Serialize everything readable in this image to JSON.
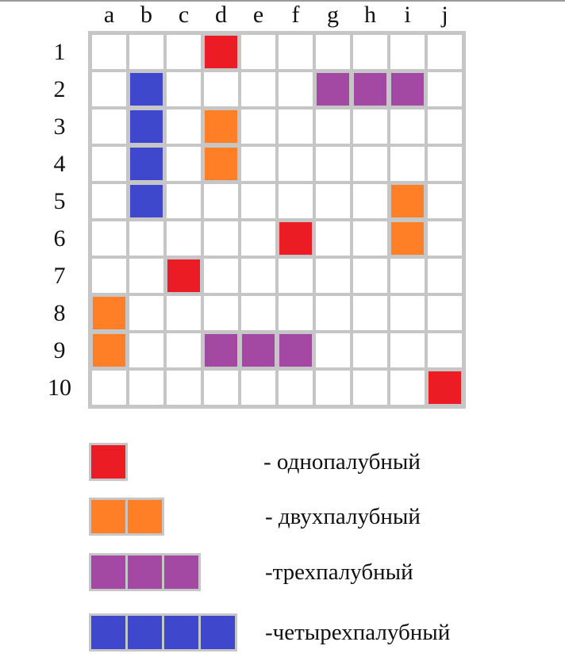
{
  "columns": [
    "a",
    "b",
    "c",
    "d",
    "e",
    "f",
    "g",
    "h",
    "i",
    "j"
  ],
  "rows": [
    "1",
    "2",
    "3",
    "4",
    "5",
    "6",
    "7",
    "8",
    "9",
    "10"
  ],
  "colors": {
    "single": "#ec1c24",
    "double": "#ff7f27",
    "triple": "#a349a4",
    "quad": "#3f48cc",
    "border": "#c6c6c6"
  },
  "ships": [
    {
      "type": "single",
      "cells": [
        "d1"
      ]
    },
    {
      "type": "single",
      "cells": [
        "f6"
      ]
    },
    {
      "type": "single",
      "cells": [
        "c7"
      ]
    },
    {
      "type": "single",
      "cells": [
        "j10"
      ]
    },
    {
      "type": "double",
      "cells": [
        "d3",
        "d4"
      ]
    },
    {
      "type": "double",
      "cells": [
        "i5",
        "i6"
      ]
    },
    {
      "type": "double",
      "cells": [
        "a8",
        "a9"
      ]
    },
    {
      "type": "triple",
      "cells": [
        "g2",
        "h2",
        "i2"
      ]
    },
    {
      "type": "triple",
      "cells": [
        "d9",
        "e9",
        "f9"
      ]
    },
    {
      "type": "quad",
      "cells": [
        "b2",
        "b3",
        "b4",
        "b5"
      ]
    }
  ],
  "legend": [
    {
      "type": "single",
      "size": 1,
      "label": "- однопалубный"
    },
    {
      "type": "double",
      "size": 2,
      "label": "- двухпалубный"
    },
    {
      "type": "triple",
      "size": 3,
      "label": "-трехпалубный"
    },
    {
      "type": "quad",
      "size": 4,
      "label": "-четырехпалубный"
    }
  ]
}
